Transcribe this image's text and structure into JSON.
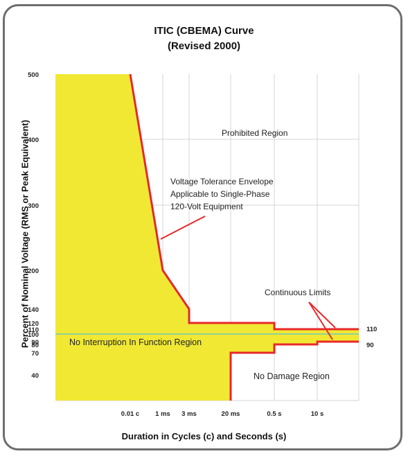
{
  "chart_data": {
    "type": "line",
    "title": "ITIC (CBEMA) Curve",
    "subtitle": "(Revised 2000)",
    "xlabel": "Duration in Cycles (c) and Seconds (s)",
    "ylabel": "Percent of Nominal Voltage (RMS or Peak Equivalent)",
    "x_tick_labels": [
      "0.01 c",
      "1 ms",
      "3 ms",
      "20 ms",
      "0.5 s",
      "10 s"
    ],
    "y_ticks": [
      40,
      70,
      80,
      90,
      100,
      110,
      120,
      140,
      200,
      300,
      400,
      500
    ],
    "y_tick_labels": [
      "40",
      "70",
      "80",
      "90",
      "100",
      "110",
      "120",
      "140",
      "200",
      "300",
      "400",
      "500"
    ],
    "right_labels": [
      "110",
      "90"
    ],
    "nominal_line": 100,
    "series": [
      {
        "role": "upper-limit",
        "points": [
          {
            "x": "0.01 c",
            "y": 500
          },
          {
            "x": "1 ms",
            "y": 200
          },
          {
            "x": "3 ms",
            "y": 140
          },
          {
            "x": "3 ms",
            "y": 120
          },
          {
            "x": "0.5 s",
            "y": 120
          },
          {
            "x": "0.5 s",
            "y": 110
          },
          {
            "x": "continuous",
            "y": 110
          }
        ]
      },
      {
        "role": "lower-limit",
        "points": [
          {
            "x": "20 ms",
            "y": 0
          },
          {
            "x": "20 ms",
            "y": 70
          },
          {
            "x": "0.5 s",
            "y": 70
          },
          {
            "x": "0.5 s",
            "y": 80
          },
          {
            "x": "10 s",
            "y": 80
          },
          {
            "x": "10 s",
            "y": 90
          },
          {
            "x": "continuous",
            "y": 90
          }
        ]
      }
    ],
    "annotations": {
      "prohibited": "Prohibited Region",
      "envelope_line1": "Voltage Tolerance Envelope",
      "envelope_line2": "Applicable to Single-Phase",
      "envelope_line3": "120-Volt Equipment",
      "continuous": "Continuous Limits",
      "no_interruption": "No Interruption In Function Region",
      "no_damage": "No Damage Region"
    },
    "colors": {
      "fill": "#f0e833",
      "limit_line": "#e8282a",
      "nominal_line": "#8fd09a",
      "grid": "#d4d4d4"
    },
    "grid": true
  }
}
